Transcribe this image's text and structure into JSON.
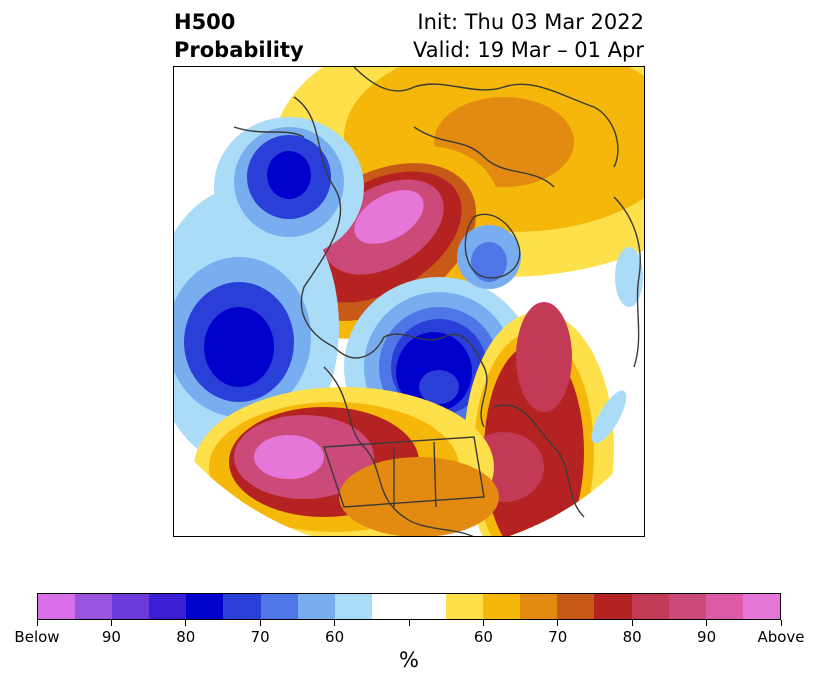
{
  "title": {
    "left_line1": "H500",
    "left_line2": "Probability",
    "right_line1": "Init: Thu 03 Mar 2022",
    "right_line2": "Valid: 19 Mar – 01 Apr"
  },
  "colorbar": {
    "unit_label": "%",
    "colors": [
      "#d86ee8",
      "#9a55e0",
      "#6c3ad8",
      "#3a1fd4",
      "#0000cc",
      "#2a3fd8",
      "#4f76e6",
      "#78aef0",
      "#aadcf8",
      "#ffffff",
      "#ffffff",
      "#fde04a",
      "#f5b70a",
      "#e38a10",
      "#c85a18",
      "#b42222",
      "#c23a55",
      "#cc4a7a",
      "#dc5aa6",
      "#e676d8"
    ],
    "tick_labels": [
      "Below",
      "90",
      "80",
      "70",
      "60",
      "",
      "60",
      "70",
      "80",
      "90",
      "Above"
    ]
  },
  "map": {
    "region": "Northern Hemisphere polar view",
    "fill_palette": {
      "deep_blue": "#0000cc",
      "blue": "#2a3fd8",
      "mid_blue": "#4f76e6",
      "light_blue": "#78aef0",
      "pale_blue": "#aadcf8",
      "yellow": "#fde04a",
      "gold": "#f5b70a",
      "orange": "#e38a10",
      "dark_orange": "#c85a18",
      "red": "#b42222",
      "crimson": "#c23a55",
      "rose": "#cc4a7a",
      "pink": "#dc5aa6",
      "magenta": "#e676d8"
    }
  }
}
